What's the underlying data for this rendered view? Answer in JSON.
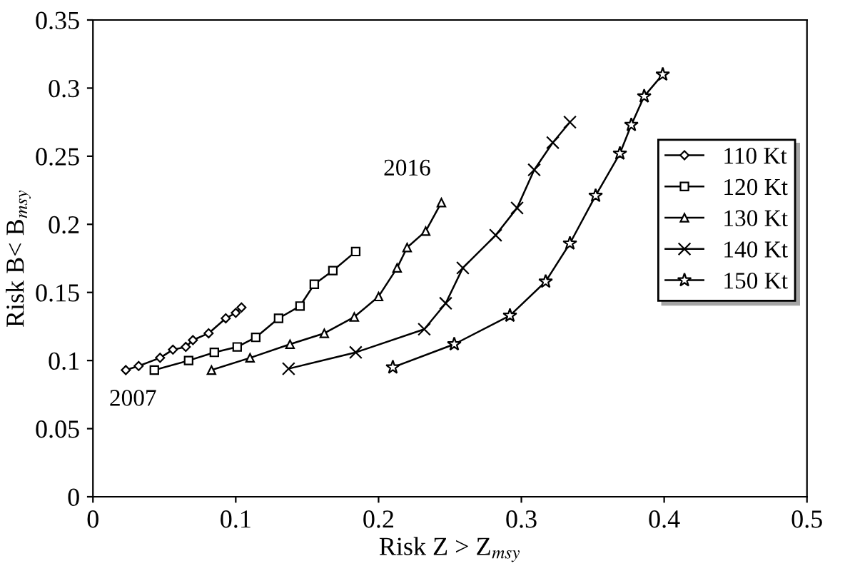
{
  "chart_data": {
    "type": "line",
    "xlabel": "Risk Z > Z$_{msy}$",
    "ylabel": "Risk B< B$_{msy}$",
    "xlim": [
      0,
      0.5
    ],
    "xticks": [
      0,
      0.1,
      0.2,
      0.3,
      0.4,
      0.5
    ],
    "ylim": [
      0,
      0.35
    ],
    "yticks": [
      0,
      0.05,
      0.1,
      0.15,
      0.2,
      0.25,
      0.3,
      0.35
    ],
    "grid": false,
    "legend": "right",
    "line_style": "solid",
    "annotations": [
      "2007",
      "2016"
    ],
    "series": [
      {
        "name": "110 Kt",
        "color": "#000000",
        "marker": "diamond",
        "x": [
          0.023,
          0.032,
          0.047,
          0.056,
          0.065,
          0.07,
          0.081,
          0.093,
          0.1,
          0.104
        ],
        "values": [
          0.093,
          0.096,
          0.102,
          0.108,
          0.11,
          0.115,
          0.12,
          0.131,
          0.135,
          0.139
        ]
      },
      {
        "name": "120 Kt",
        "color": "#000000",
        "marker": "square",
        "x": [
          0.043,
          0.067,
          0.085,
          0.101,
          0.114,
          0.13,
          0.145,
          0.155,
          0.168,
          0.184
        ],
        "values": [
          0.093,
          0.1,
          0.106,
          0.11,
          0.117,
          0.131,
          0.14,
          0.156,
          0.166,
          0.18
        ]
      },
      {
        "name": "130 Kt",
        "color": "#000000",
        "marker": "triangle",
        "x": [
          0.083,
          0.11,
          0.138,
          0.162,
          0.183,
          0.2,
          0.213,
          0.22,
          0.233,
          0.244
        ],
        "values": [
          0.093,
          0.102,
          0.112,
          0.12,
          0.132,
          0.147,
          0.168,
          0.183,
          0.195,
          0.216
        ]
      },
      {
        "name": "140 Kt",
        "color": "#000000",
        "marker": "cross",
        "x": [
          0.137,
          0.184,
          0.232,
          0.247,
          0.259,
          0.282,
          0.297,
          0.309,
          0.322,
          0.334
        ],
        "values": [
          0.094,
          0.106,
          0.123,
          0.142,
          0.168,
          0.192,
          0.212,
          0.24,
          0.26,
          0.275
        ]
      },
      {
        "name": "150 Kt",
        "color": "#000000",
        "marker": "star",
        "x": [
          0.21,
          0.253,
          0.292,
          0.317,
          0.334,
          0.352,
          0.369,
          0.377,
          0.386,
          0.399
        ],
        "values": [
          0.095,
          0.112,
          0.133,
          0.158,
          0.186,
          0.221,
          0.252,
          0.273,
          0.294,
          0.31
        ]
      }
    ]
  }
}
